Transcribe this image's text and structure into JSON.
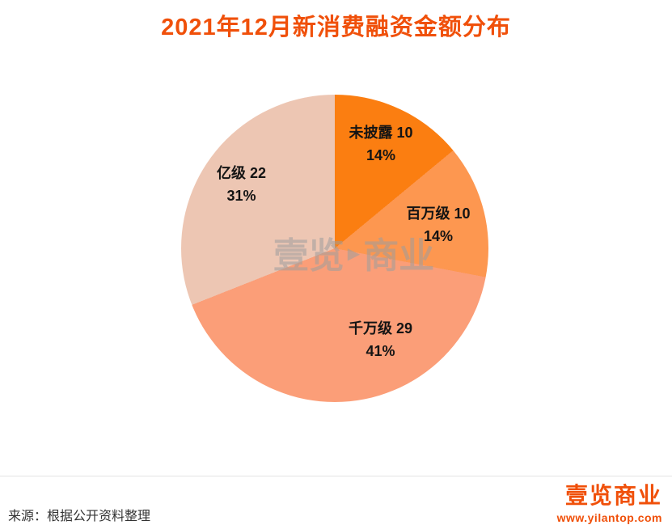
{
  "title": "2021年12月新消费融资金额分布",
  "watermark": {
    "left": "壹览",
    "right": "商业",
    "play_icon": "▶"
  },
  "chart_data": {
    "type": "pie",
    "title": "2021年12月新消费融资金额分布",
    "total": 71,
    "start_angle": "12-o-clock",
    "direction": "clockwise",
    "legend": "none",
    "labels_on_chart": true,
    "slices": [
      {
        "name": "未披露",
        "value": 10,
        "percent": 14,
        "label": "未披露 10",
        "percent_label": "14%",
        "color": "#fb7e11"
      },
      {
        "name": "百万级",
        "value": 10,
        "percent": 14,
        "label": "百万级 10",
        "percent_label": "14%",
        "color": "#fd9750"
      },
      {
        "name": "千万级",
        "value": 29,
        "percent": 41,
        "label": "千万级 29",
        "percent_label": "41%",
        "color": "#fb9e78"
      },
      {
        "name": "亿级",
        "value": 22,
        "percent": 31,
        "label": "亿级 22",
        "percent_label": "31%",
        "color": "#edc6b3"
      }
    ]
  },
  "footer": {
    "source": "来源：根据公开资料整理",
    "brand": "壹览商业",
    "website": "www.yilantop.com"
  },
  "colors": {
    "title": "#f0500a",
    "brand": "#f0500a",
    "divider": "#e3e3e3",
    "label_text": "#141414",
    "watermark": "#9e9e9e",
    "background": "#ffffff"
  }
}
